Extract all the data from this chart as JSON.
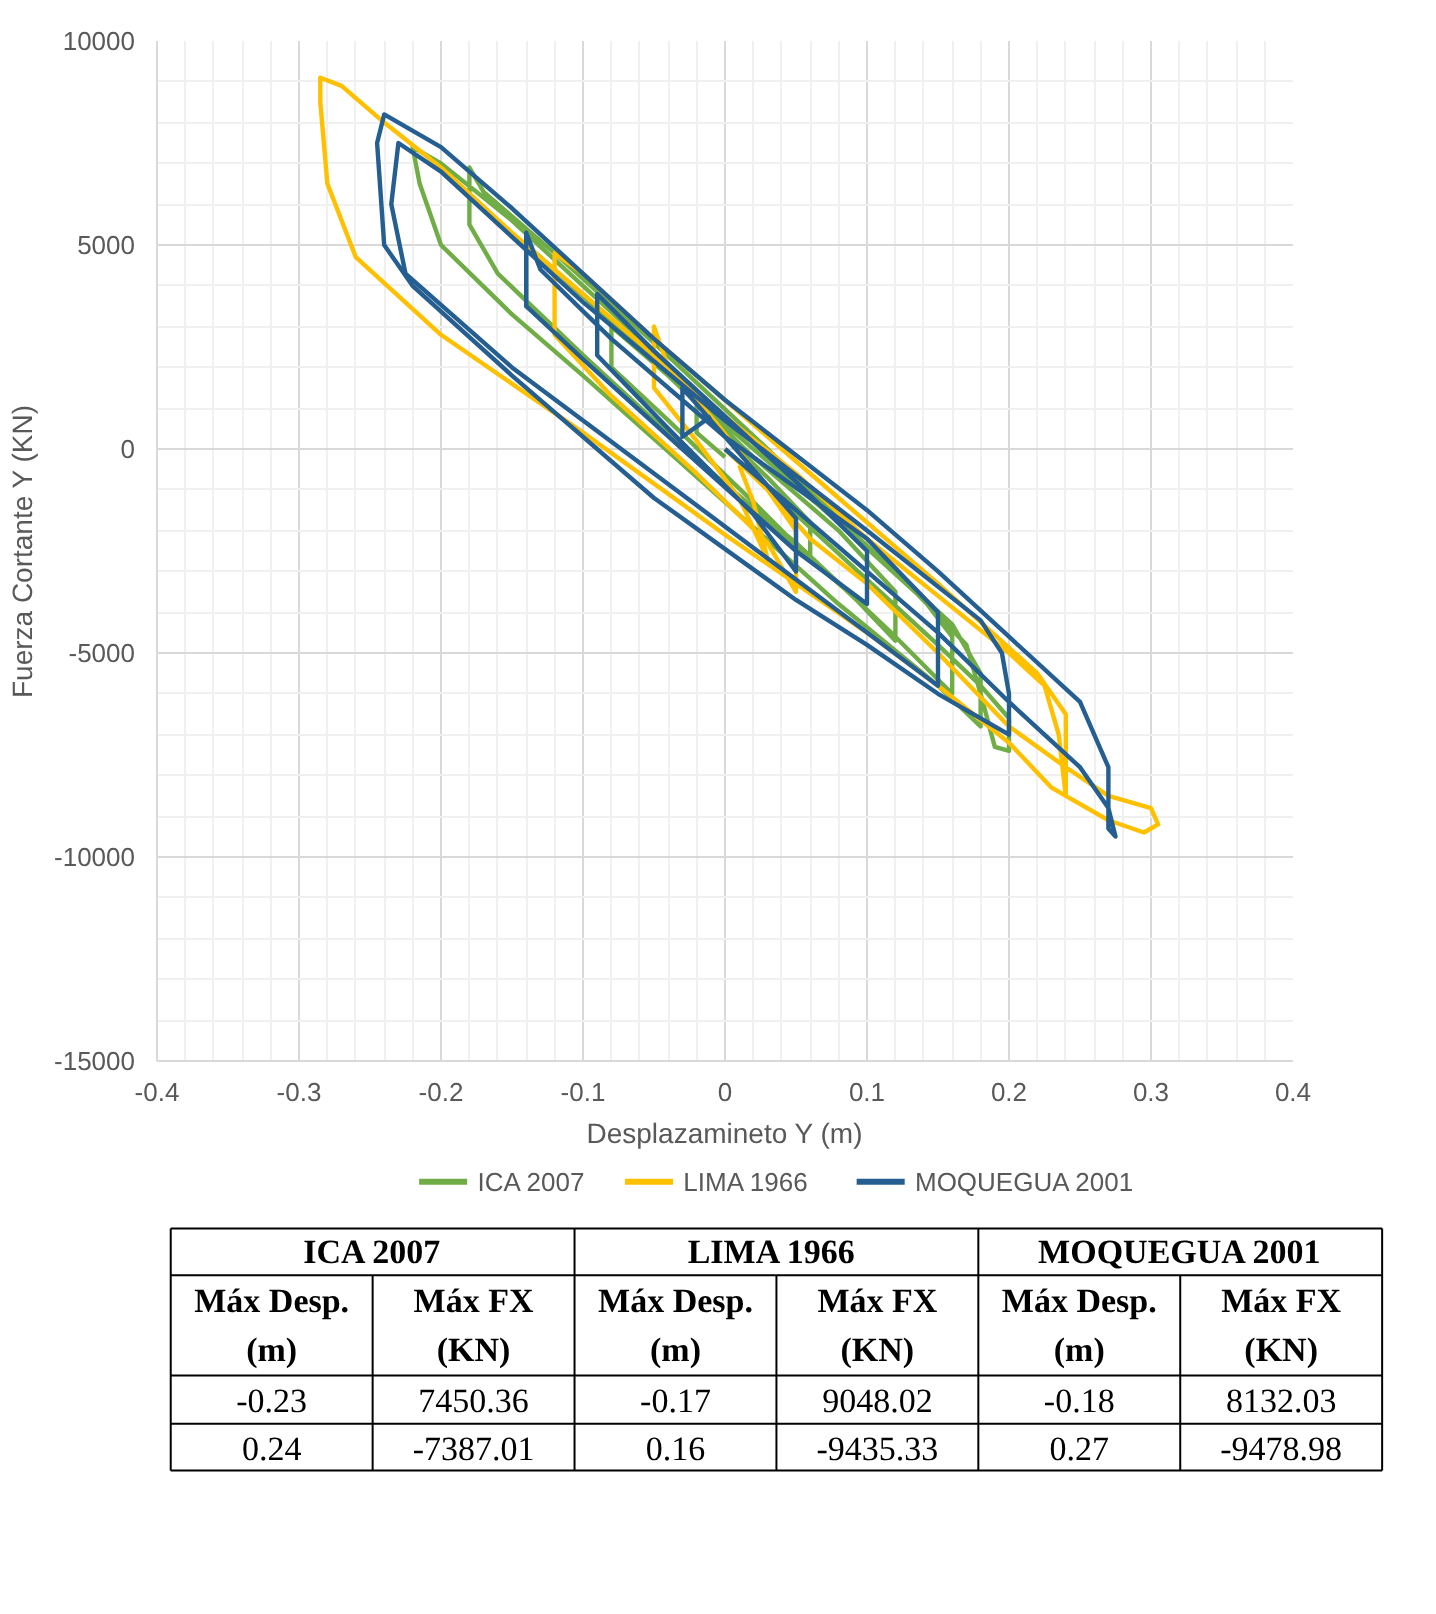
{
  "chart_data": {
    "type": "line",
    "xlabel": "Desplazamineto Y (m)",
    "ylabel": "Fuerza Cortante Y (KN)",
    "xlim": [
      -0.4,
      0.4
    ],
    "xticks": [
      -0.4,
      -0.3,
      -0.2,
      -0.1,
      0,
      0.1,
      0.2,
      0.3,
      0.4
    ],
    "ylim": [
      -15000,
      10000
    ],
    "yticks": [
      -15000,
      -10000,
      -5000,
      0,
      5000,
      10000
    ],
    "grid": true,
    "legend": "bottom",
    "marker": "none",
    "line_style": "solid",
    "series": [
      {
        "name": "ICA 2007",
        "color": "#70ad47",
        "x": [
          0,
          0.05,
          0.1,
          0.15,
          0.18,
          0.2,
          0.2,
          0.19,
          0.18,
          0.17,
          0.12,
          0.05,
          0,
          -0.05,
          -0.1,
          -0.15,
          -0.2,
          -0.22,
          -0.215,
          -0.2,
          -0.15,
          -0.1,
          0,
          0.08,
          0.15,
          0.18,
          0.18,
          0.16,
          0.1,
          0.03,
          -0.05,
          -0.12,
          -0.17,
          -0.18,
          -0.18,
          -0.16,
          -0.1,
          -0.03,
          0.05,
          0.12,
          0.16,
          0.16,
          0.14,
          0.08,
          0,
          -0.07,
          -0.13,
          -0.14,
          -0.14,
          -0.1,
          -0.05,
          0.03,
          0.09,
          0.12,
          0.12,
          0.08,
          0.02,
          -0.04,
          -0.08,
          -0.08,
          -0.04,
          0.02,
          0.06,
          0.06,
          0.03,
          0,
          -0.02,
          -0.02,
          0
        ],
        "values": [
          0,
          -1600,
          -3200,
          -4800,
          -5800,
          -6600,
          -7400,
          -7300,
          -6000,
          -4800,
          -3000,
          -800,
          800,
          2400,
          4000,
          5600,
          7000,
          7400,
          6500,
          5000,
          3300,
          1800,
          -1300,
          -3800,
          -5800,
          -6800,
          -5500,
          -4300,
          -2400,
          0,
          2600,
          4800,
          6300,
          6900,
          5500,
          4300,
          2300,
          0,
          -2300,
          -4600,
          -6000,
          -4600,
          -3700,
          -1800,
          600,
          2800,
          4700,
          5000,
          3500,
          2300,
          700,
          -1800,
          -3600,
          -4700,
          -3500,
          -2000,
          -200,
          1800,
          3000,
          2000,
          700,
          -1300,
          -2700,
          -1800,
          -700,
          300,
          1200,
          400,
          -200
        ]
      },
      {
        "name": "LIMA  1966",
        "color": "#ffc000",
        "x": [
          0,
          0.03,
          0.06,
          0.1,
          0.15,
          0.2,
          0.24,
          0.27,
          0.3,
          0.305,
          0.295,
          0.27,
          0.24,
          0.235,
          0.225,
          0.2,
          0.15,
          0.1,
          0.05,
          0,
          -0.05,
          -0.1,
          -0.15,
          -0.2,
          -0.24,
          -0.27,
          -0.285,
          -0.285,
          -0.28,
          -0.26,
          -0.2,
          -0.1,
          0,
          0.1,
          0.15,
          0.2,
          0.23,
          0.24,
          0.24,
          0.22,
          0.15,
          0.08,
          0.04,
          0,
          -0.05,
          -0.1,
          -0.12,
          -0.12,
          -0.08,
          -0.02,
          0.03,
          0.05,
          0.05,
          0.02,
          -0.01,
          -0.04,
          -0.05,
          -0.05,
          -0.02,
          0.01,
          0.03,
          0.02,
          0.01
        ],
        "values": [
          0,
          -1000,
          -2200,
          -3300,
          -5000,
          -6800,
          -7800,
          -8500,
          -8800,
          -9200,
          -9400,
          -9100,
          -8500,
          -7000,
          -5800,
          -5000,
          -3600,
          -2200,
          -600,
          800,
          2300,
          3800,
          5300,
          6900,
          8000,
          8900,
          9100,
          8500,
          6500,
          4700,
          2800,
          400,
          -2100,
          -4500,
          -5800,
          -7200,
          -8300,
          -8500,
          -6500,
          -5500,
          -3300,
          -1200,
          0,
          1200,
          2700,
          4300,
          4800,
          2800,
          1300,
          -600,
          -2300,
          -3500,
          -2000,
          -500,
          800,
          2000,
          3000,
          1500,
          200,
          -1200,
          -2700,
          -1300,
          -400
        ]
      },
      {
        "name": "MOQUEGUA 2001",
        "color": "#255e91",
        "x": [
          0,
          0.05,
          0.1,
          0.15,
          0.2,
          0.25,
          0.27,
          0.275,
          0.27,
          0.27,
          0.25,
          0.2,
          0.15,
          0.1,
          0,
          -0.05,
          -0.1,
          -0.15,
          -0.2,
          -0.24,
          -0.245,
          -0.24,
          -0.22,
          -0.15,
          -0.05,
          0.05,
          0.1,
          0.15,
          0.2,
          0.2,
          0.195,
          0.18,
          0.1,
          0,
          -0.1,
          -0.2,
          -0.23,
          -0.235,
          -0.225,
          -0.15,
          -0.05,
          0.05,
          0.1,
          0.15,
          0.15,
          0.1,
          0,
          -0.08,
          -0.13,
          -0.14,
          -0.14,
          -0.1,
          -0.03,
          0.05,
          0.1,
          0.1,
          0.05,
          0,
          -0.05,
          -0.09,
          -0.09,
          -0.04,
          0.02,
          0.05,
          0.05,
          0.01,
          -0.03,
          -0.03,
          -0.01
        ],
        "values": [
          0,
          -1500,
          -3000,
          -4500,
          -6200,
          -7800,
          -8800,
          -9500,
          -9300,
          -7800,
          -6200,
          -4600,
          -3000,
          -1500,
          1200,
          2700,
          4300,
          5900,
          7400,
          8200,
          7500,
          5000,
          4000,
          1800,
          -1200,
          -3700,
          -4800,
          -6000,
          -7000,
          -6000,
          -5000,
          -4200,
          -2000,
          700,
          3600,
          6800,
          7500,
          6000,
          4300,
          2000,
          -600,
          -3200,
          -4500,
          -5800,
          -4000,
          -2200,
          300,
          2700,
          4400,
          5300,
          3500,
          2200,
          0,
          -2500,
          -3800,
          -2500,
          -800,
          800,
          2400,
          3800,
          2300,
          500,
          -1600,
          -3000,
          -1700,
          -100,
          1500,
          300,
          800
        ]
      }
    ],
    "annotations": [
      "ICA 2007",
      "LIMA  1966",
      "MOQUEGUA 2001",
      "Máx Desp. (m)",
      "Máx FX (KN)",
      "Máx Desp. (m)",
      "Máx FX (KN)",
      "Máx Desp. (m)",
      "Máx FX (KN)",
      "-0.23",
      "7450.36",
      "-0.17",
      "9048.02",
      "-0.18",
      "8132.03",
      "0.24",
      "-7387.01",
      "0.16",
      "-9435.33",
      "0.27",
      "-9478.98"
    ]
  }
}
